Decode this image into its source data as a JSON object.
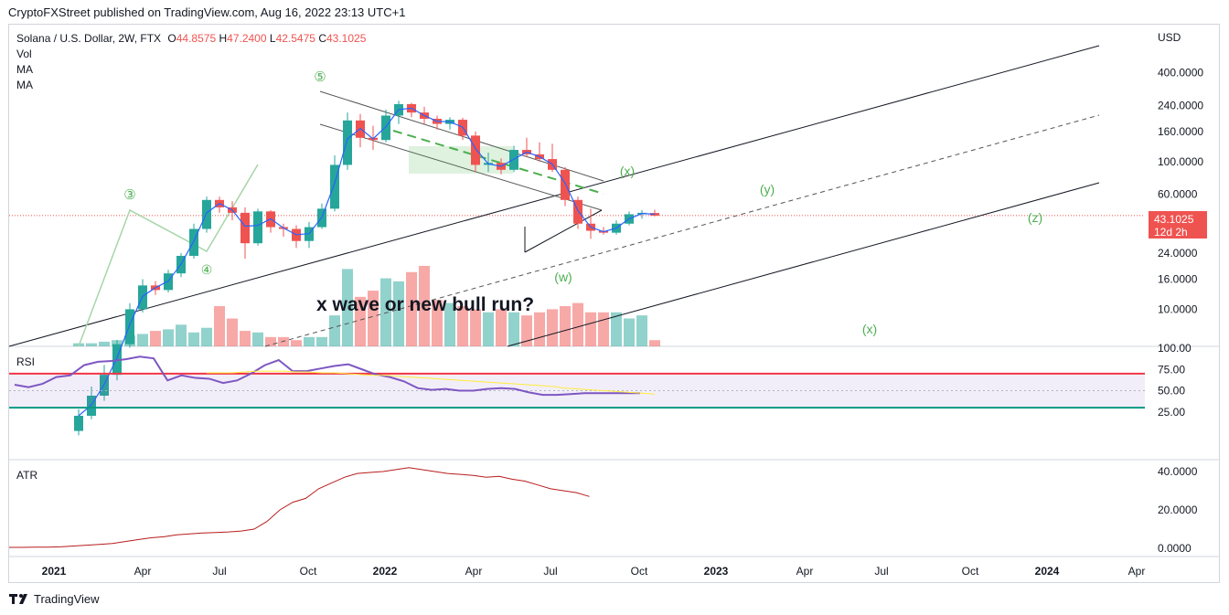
{
  "header": {
    "text": "CryptoFXStreet published on TradingView.com, Aug 16, 2022 23:13 UTC+1"
  },
  "legend": {
    "symbol": "Solana / U.S. Dollar, 2W, FTX",
    "open_label": "O",
    "open": "44.8575",
    "high_label": "H",
    "high": "47.2400",
    "low_label": "L",
    "low": "42.5475",
    "close_label": "C",
    "close": "43.1025",
    "vol": "Vol",
    "ma1": "MA",
    "ma2": "MA"
  },
  "price_badge": {
    "price": "43.1025",
    "countdown": "12d 2h"
  },
  "annotation": "x wave or new bull run?",
  "wave_labels": [
    "③",
    "④",
    "⑤",
    "(x)",
    "(y)",
    "(z)",
    "(w)",
    "(x)"
  ],
  "panes": {
    "rsi": "RSI",
    "atr": "ATR"
  },
  "footer": {
    "brand": "TradingView"
  },
  "colors": {
    "up": "#26a69a",
    "down": "#ef5350",
    "rsi": "#7e57c2",
    "atr": "#b71c1c",
    "rsi_upper": "#f23645",
    "rsi_lower": "#089981",
    "wave": "#4caf50"
  },
  "chart_data": [
    {
      "type": "candlestick",
      "scale": "log",
      "yunit": "USD",
      "y_ticks": [
        "400.0000",
        "240.0000",
        "160.0000",
        "100.0000",
        "60.0000",
        "24.0000",
        "16.0000",
        "10.0000"
      ],
      "x_ticks": [
        "2021",
        "Apr",
        "Jul",
        "Oct",
        "2022",
        "Apr",
        "Jul",
        "Oct",
        "2023",
        "Apr",
        "Jul",
        "Oct",
        "2024",
        "Apr"
      ],
      "last_close": 43.1025,
      "candles": [
        {
          "o": 1.5,
          "h": 2.1,
          "l": 1.4,
          "c": 1.9
        },
        {
          "o": 1.9,
          "h": 3.0,
          "l": 1.8,
          "c": 2.6
        },
        {
          "o": 2.6,
          "h": 4.2,
          "l": 2.4,
          "c": 3.6
        },
        {
          "o": 3.6,
          "h": 6.2,
          "l": 3.3,
          "c": 5.8
        },
        {
          "o": 5.8,
          "h": 11.0,
          "l": 5.5,
          "c": 10.0
        },
        {
          "o": 10.0,
          "h": 16.0,
          "l": 9.5,
          "c": 14.5
        },
        {
          "o": 14.5,
          "h": 15.5,
          "l": 12.5,
          "c": 13.5
        },
        {
          "o": 13.5,
          "h": 18.5,
          "l": 13.0,
          "c": 17.5
        },
        {
          "o": 17.5,
          "h": 24.0,
          "l": 16.5,
          "c": 23.0
        },
        {
          "o": 23.0,
          "h": 38.0,
          "l": 22.0,
          "c": 35.0
        },
        {
          "o": 35.0,
          "h": 58.0,
          "l": 33.0,
          "c": 55.0
        },
        {
          "o": 55.0,
          "h": 58.0,
          "l": 45.0,
          "c": 49.0
        },
        {
          "o": 49.0,
          "h": 54.0,
          "l": 40.0,
          "c": 45.0
        },
        {
          "o": 45.0,
          "h": 49.0,
          "l": 22.0,
          "c": 28.0
        },
        {
          "o": 28.0,
          "h": 48.0,
          "l": 27.0,
          "c": 46.0
        },
        {
          "o": 46.0,
          "h": 47.0,
          "l": 33.0,
          "c": 36.0
        },
        {
          "o": 36.0,
          "h": 38.0,
          "l": 31.0,
          "c": 35.0
        },
        {
          "o": 35.0,
          "h": 37.0,
          "l": 26.0,
          "c": 29.0
        },
        {
          "o": 29.0,
          "h": 39.0,
          "l": 26.0,
          "c": 36.0
        },
        {
          "o": 36.0,
          "h": 52.0,
          "l": 35.0,
          "c": 48.0
        },
        {
          "o": 48.0,
          "h": 110.0,
          "l": 46.0,
          "c": 95.0
        },
        {
          "o": 95.0,
          "h": 215.0,
          "l": 88.0,
          "c": 190.0
        },
        {
          "o": 190.0,
          "h": 210.0,
          "l": 125.0,
          "c": 145.0
        },
        {
          "o": 145.0,
          "h": 175.0,
          "l": 120.0,
          "c": 140.0
        },
        {
          "o": 140.0,
          "h": 225.0,
          "l": 135.0,
          "c": 205.0
        },
        {
          "o": 205.0,
          "h": 258.0,
          "l": 180.0,
          "c": 245.0
        },
        {
          "o": 245.0,
          "h": 250.0,
          "l": 200.0,
          "c": 215.0
        },
        {
          "o": 215.0,
          "h": 235.0,
          "l": 180.0,
          "c": 195.0
        },
        {
          "o": 195.0,
          "h": 205.0,
          "l": 165.0,
          "c": 180.0
        },
        {
          "o": 180.0,
          "h": 200.0,
          "l": 165.0,
          "c": 192.0
        },
        {
          "o": 192.0,
          "h": 198.0,
          "l": 140.0,
          "c": 150.0
        },
        {
          "o": 150.0,
          "h": 160.0,
          "l": 85.0,
          "c": 95.0
        },
        {
          "o": 95.0,
          "h": 115.0,
          "l": 85.0,
          "c": 98.0
        },
        {
          "o": 98.0,
          "h": 105.0,
          "l": 82.0,
          "c": 88.0
        },
        {
          "o": 88.0,
          "h": 128.0,
          "l": 85.0,
          "c": 120.0
        },
        {
          "o": 120.0,
          "h": 145.0,
          "l": 108.0,
          "c": 112.0
        },
        {
          "o": 112.0,
          "h": 135.0,
          "l": 100.0,
          "c": 104.0
        },
        {
          "o": 104.0,
          "h": 132.0,
          "l": 85.0,
          "c": 88.0
        },
        {
          "o": 88.0,
          "h": 92.0,
          "l": 50.0,
          "c": 55.0
        },
        {
          "o": 55.0,
          "h": 58.0,
          "l": 35.0,
          "c": 38.0
        },
        {
          "o": 38.0,
          "h": 48.0,
          "l": 30.0,
          "c": 34.0
        },
        {
          "o": 34.0,
          "h": 36.0,
          "l": 32.0,
          "c": 33.0
        },
        {
          "o": 33.0,
          "h": 40.0,
          "l": 32.0,
          "c": 38.0
        },
        {
          "o": 38.0,
          "h": 46.0,
          "l": 37.0,
          "c": 44.0
        },
        {
          "o": 44.0,
          "h": 47.0,
          "l": 41.0,
          "c": 45.0
        },
        {
          "o": 44.8575,
          "h": 47.24,
          "l": 42.5475,
          "c": 43.1025
        }
      ],
      "volume": [
        1,
        1,
        1.5,
        2,
        3.5,
        4,
        5,
        5.5,
        7,
        4.5,
        6,
        13,
        9,
        5,
        4.5,
        3,
        3,
        2,
        3,
        3,
        10,
        25,
        16,
        18,
        22,
        21,
        24,
        26,
        15,
        14,
        13,
        12,
        11,
        12,
        11,
        10,
        11,
        12,
        13,
        14,
        11,
        11,
        11,
        9,
        10,
        2
      ]
    },
    {
      "type": "line",
      "title": "RSI",
      "y_ticks": [
        "100.00",
        "75.00",
        "50.00",
        "25.00"
      ],
      "levels": [
        70,
        30
      ],
      "series": [
        {
          "values": [
            57,
            54,
            58,
            66,
            68,
            80,
            84,
            85,
            87,
            90,
            88,
            62,
            68,
            65,
            64,
            59,
            62,
            70,
            80,
            86,
            73,
            73,
            76,
            79,
            81,
            75,
            69,
            66,
            61,
            53,
            51,
            52,
            50,
            50,
            52,
            53,
            52,
            48,
            45,
            45,
            46,
            47,
            47,
            47,
            47,
            47
          ]
        },
        {
          "values": [
            null,
            null,
            null,
            null,
            null,
            null,
            null,
            null,
            null,
            null,
            71,
            71,
            71,
            72,
            73,
            73,
            73,
            72,
            72,
            71,
            71,
            70,
            69,
            68,
            68,
            67,
            66,
            65,
            64,
            63,
            62,
            61,
            60,
            59,
            58,
            57,
            56,
            55,
            53,
            52,
            51,
            50,
            49,
            48,
            47,
            46
          ]
        }
      ]
    },
    {
      "type": "line",
      "title": "ATR",
      "y_ticks": [
        "40.0000",
        "20.0000",
        "0.0000"
      ],
      "series": [
        {
          "values": [
            0.5,
            0.5,
            0.6,
            0.6,
            0.8,
            1.2,
            1.6,
            2.0,
            2.5,
            3.5,
            4.5,
            5.5,
            6.0,
            7.0,
            7.5,
            8.0,
            8.2,
            8.5,
            9.0,
            10.0,
            14.0,
            20.0,
            24.0,
            26.0,
            31.0,
            34.0,
            37.0,
            39.0,
            39.5,
            40.0,
            41.0,
            42.0,
            41.0,
            40.0,
            39.0,
            38.5,
            38.0,
            37.0,
            37.5,
            36.0,
            35.0,
            33.0,
            31.0,
            30.0,
            29.0,
            27.0
          ]
        }
      ]
    }
  ]
}
